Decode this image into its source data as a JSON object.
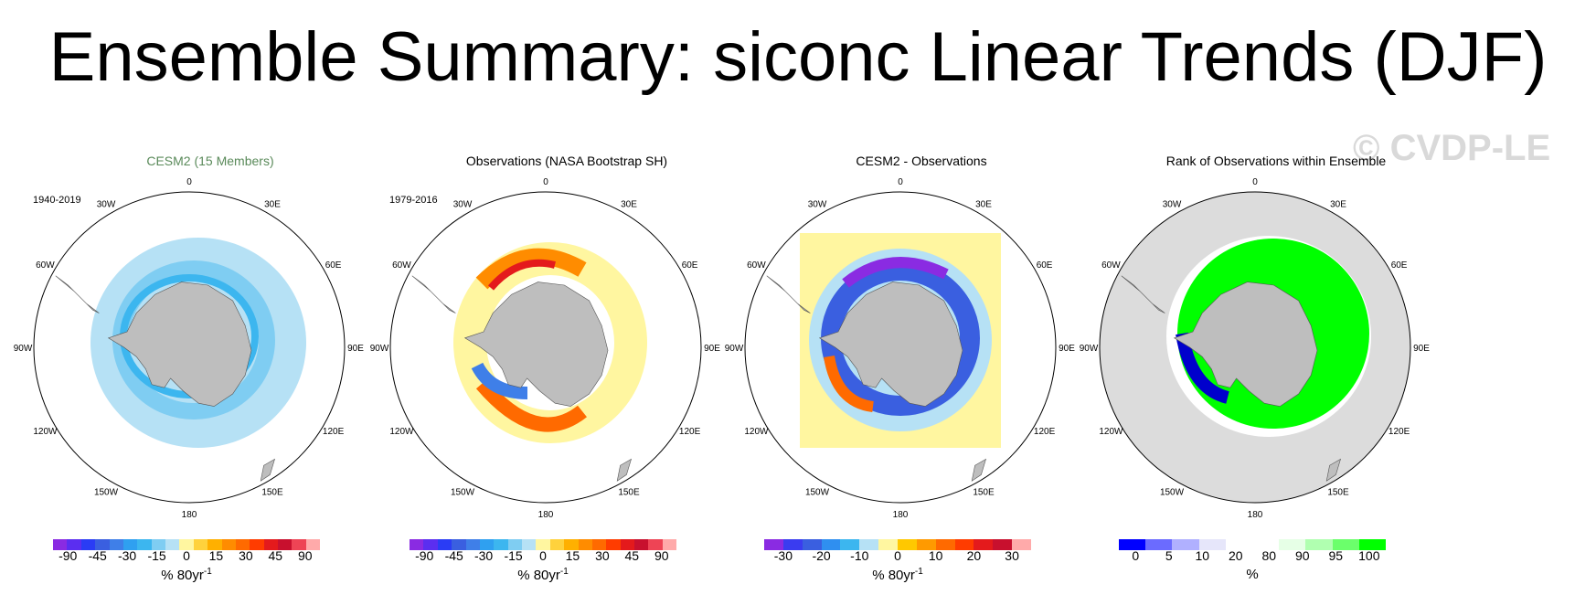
{
  "title": "Ensemble Summary: siconc Linear Trends (DJF)",
  "watermark": "© CVDP-LE",
  "lon_labels": [
    "0",
    "30E",
    "60E",
    "90E",
    "120E",
    "150E",
    "180",
    "150W",
    "120W",
    "90W",
    "60W",
    "30W"
  ],
  "panels": [
    {
      "title": "CESM2 (15 Members)",
      "period": "1940-2019",
      "unit": "% 80yr",
      "unit_sup": "-1",
      "ticks": [
        "-90",
        "-45",
        "-30",
        "-15",
        "0",
        "15",
        "30",
        "45",
        "90"
      ],
      "colors": [
        "#8a2be2",
        "#5b2ef0",
        "#2a3cf5",
        "#3a5fe0",
        "#3f7fe8",
        "#2fa0f0",
        "#3cb6ef",
        "#7fcdf2",
        "#b6e1f5",
        "#fff6a0",
        "#ffd23c",
        "#ffb000",
        "#ff8c00",
        "#ff6a00",
        "#ff3c00",
        "#e41a1c",
        "#c8102e",
        "#ee4455",
        "#ffaaaa"
      ]
    },
    {
      "title": "Observations (NASA Bootstrap SH)",
      "period": "1979-2016",
      "unit": "% 80yr",
      "unit_sup": "-1",
      "ticks": [
        "-90",
        "-45",
        "-30",
        "-15",
        "0",
        "15",
        "30",
        "45",
        "90"
      ],
      "colors": [
        "#8a2be2",
        "#5b2ef0",
        "#2a3cf5",
        "#3a5fe0",
        "#3f7fe8",
        "#2fa0f0",
        "#3cb6ef",
        "#7fcdf2",
        "#b6e1f5",
        "#fff6a0",
        "#ffd23c",
        "#ffb000",
        "#ff8c00",
        "#ff6a00",
        "#ff3c00",
        "#e41a1c",
        "#c8102e",
        "#ee4455",
        "#ffaaaa"
      ]
    },
    {
      "title": "CESM2 - Observations",
      "period": "",
      "unit": "% 80yr",
      "unit_sup": "-1",
      "ticks": [
        "-30",
        "-20",
        "-10",
        "0",
        "10",
        "20",
        "30"
      ],
      "colors": [
        "#8a2be2",
        "#3a3cf0",
        "#3a5fe0",
        "#2f8ff0",
        "#3cb6ef",
        "#b6e1f5",
        "#fff6a0",
        "#ffc800",
        "#ff9a00",
        "#ff6a00",
        "#ff3c00",
        "#e41a1c",
        "#c8102e",
        "#ffaaaa"
      ]
    },
    {
      "title": "Rank of Observations within Ensemble",
      "period": "",
      "unit": "%",
      "unit_sup": "",
      "ticks": [
        "0",
        "5",
        "10",
        "20",
        "80",
        "90",
        "95",
        "100"
      ],
      "colors": [
        "#0000ff",
        "#6b6bff",
        "#b0b0ff",
        "#e6e6fa",
        "#ffffff",
        "#ffffff",
        "#e6ffe6",
        "#b0ffb0",
        "#6bff6b",
        "#00ff00"
      ]
    }
  ]
}
